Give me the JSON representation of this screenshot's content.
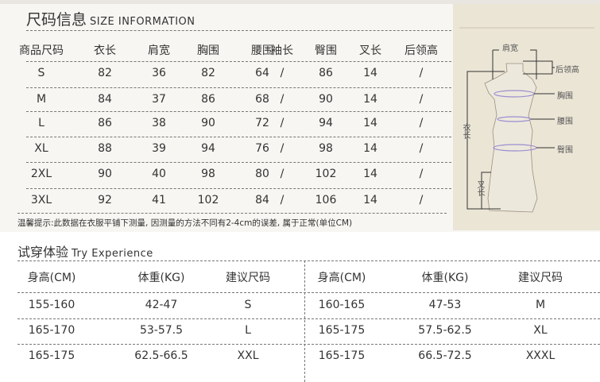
{
  "size_section": {
    "title_cn": "尺码信息",
    "title_en": "SIZE INFORMATION",
    "headers": [
      "商品尺码",
      "衣长",
      "肩宽",
      "胸围",
      "腰围",
      "袖长",
      "臀围",
      "叉长",
      "后领高"
    ],
    "rows": [
      [
        "S",
        "82",
        "36",
        "82",
        "64",
        "/",
        "86",
        "14",
        "/"
      ],
      [
        "M",
        "84",
        "37",
        "86",
        "68",
        "/",
        "90",
        "14",
        "/"
      ],
      [
        "L",
        "86",
        "38",
        "90",
        "72",
        "/",
        "94",
        "14",
        "/"
      ],
      [
        "XL",
        "88",
        "39",
        "94",
        "76",
        "/",
        "98",
        "14",
        "/"
      ],
      [
        "2XL",
        "90",
        "40",
        "98",
        "80",
        "/",
        "102",
        "14",
        "/"
      ],
      [
        "3XL",
        "92",
        "41",
        "102",
        "84",
        "/",
        "106",
        "14",
        "/"
      ]
    ],
    "note": "温馨提示:此数据在衣服平铺下测量, 因测量的方法不同有2-4cm的误差, 属于正常(单位CM)"
  },
  "diagram": {
    "labels": {
      "shoulder": "肩宽",
      "collar": "后领高",
      "chest": "胸围",
      "waist": "腰围",
      "hip": "臀围",
      "length": "衣长",
      "slit": "叉长"
    }
  },
  "try_section": {
    "title_cn": "试穿体验",
    "title_en": "Try Experience",
    "headers": [
      "身高(CM)",
      "体重(KG)",
      "建议尺码",
      "身高(CM)",
      "体重(KG)",
      "建议尺码"
    ],
    "rows": [
      [
        "155-160",
        "42-47",
        "S",
        "160-165",
        "47-53",
        "M"
      ],
      [
        "165-170",
        "53-57.5",
        "L",
        "165-175",
        "57.5-62.5",
        "XL"
      ],
      [
        "165-175",
        "62.5-66.5",
        "XXL",
        "165-175",
        "66.5-72.5",
        "XXXL"
      ]
    ]
  }
}
